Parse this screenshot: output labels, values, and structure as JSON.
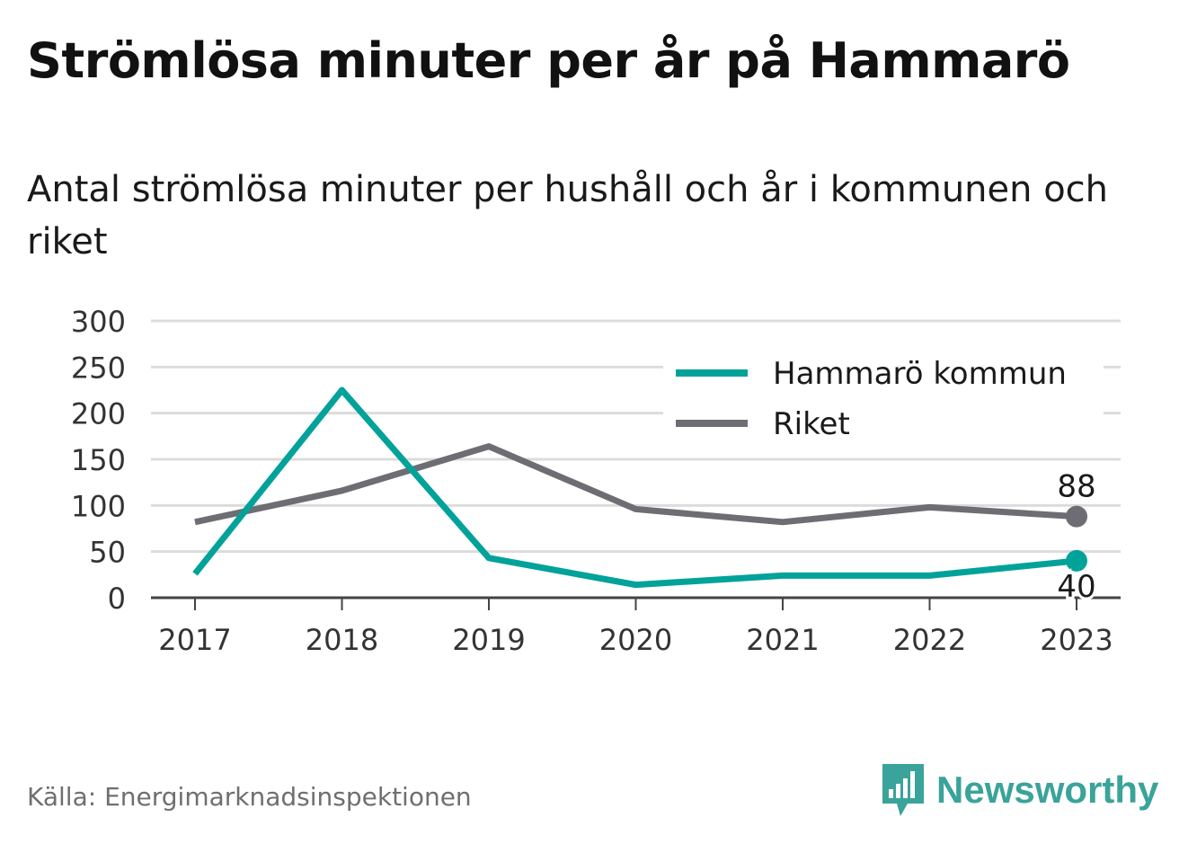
{
  "title": "Strömlösa minuter per år på Hammarö",
  "subtitle": "Antal strömlösa minuter per hushåll och år i kommunen och riket",
  "source": "Källa: Energimarknadsinspektionen",
  "brand": "Newsworthy",
  "colors": {
    "teal": "#00a29a",
    "gray": "#6d6d73",
    "grid": "#dcdcdc",
    "axis": "#444444",
    "brand": "#3aa39a"
  },
  "chart_data": {
    "type": "line",
    "x": [
      "2017",
      "2018",
      "2019",
      "2020",
      "2021",
      "2022",
      "2023"
    ],
    "ylim": [
      0,
      300
    ],
    "yticks": [
      "0",
      "50",
      "100",
      "150",
      "200",
      "250",
      "300"
    ],
    "grid": true,
    "legend": "top-right",
    "series": [
      {
        "name": "Hammarö kommun",
        "color": "#00a29a",
        "values": [
          26,
          225,
          43,
          14,
          24,
          24,
          40
        ],
        "end_label": "40"
      },
      {
        "name": "Riket",
        "color": "#6d6d73",
        "values": [
          82,
          116,
          164,
          96,
          82,
          98,
          88
        ],
        "end_label": "88"
      }
    ]
  }
}
